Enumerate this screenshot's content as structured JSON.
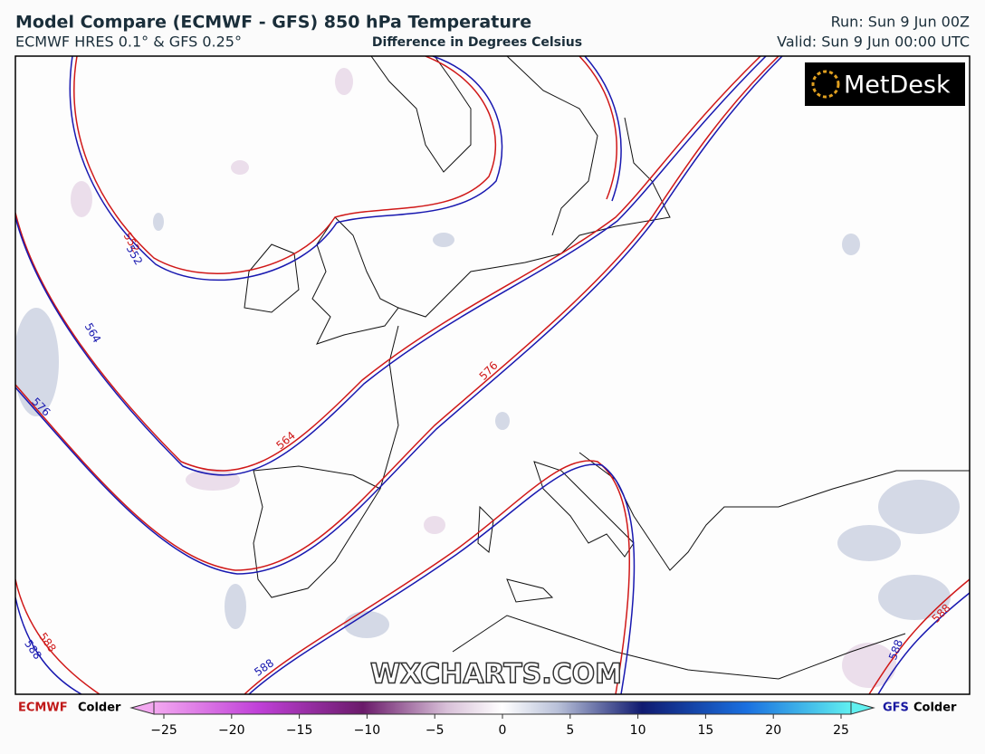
{
  "header": {
    "title": "Model Compare (ECMWF - GFS) 850 hPa Temperature",
    "subtitle": "ECMWF HRES 0.1° & GFS 0.25°",
    "center_subtitle": "Difference in Degrees Celsius",
    "run": "Run: Sun 9 Jun 00Z",
    "valid": "Valid: Sun 9 Jun 00:00 UTC"
  },
  "logo": "MetDesk",
  "watermark": "WXCHARTS.COM",
  "map": {
    "contour_labels": [
      552,
      552,
      564,
      564,
      576,
      576,
      588,
      588,
      588,
      588,
      588
    ]
  },
  "colorbar": {
    "left_model": "ECMWF",
    "left_label": "Colder",
    "right_model": "GFS",
    "right_label": "Colder",
    "range": [
      -25,
      25
    ],
    "ticks": [
      {
        "value": -25,
        "label": "−25"
      },
      {
        "value": -20,
        "label": "−20"
      },
      {
        "value": -15,
        "label": "−15"
      },
      {
        "value": -10,
        "label": "−10"
      },
      {
        "value": -5,
        "label": "−5"
      },
      0,
      5,
      10,
      15,
      20,
      25
    ]
  }
}
